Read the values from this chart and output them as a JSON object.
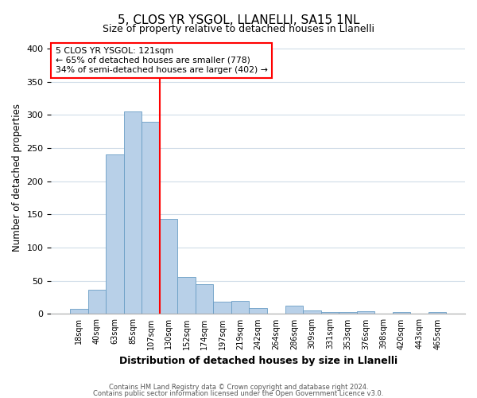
{
  "title": "5, CLOS YR YSGOL, LLANELLI, SA15 1NL",
  "subtitle": "Size of property relative to detached houses in Llanelli",
  "xlabel": "Distribution of detached houses by size in Llanelli",
  "ylabel": "Number of detached properties",
  "bar_labels": [
    "18sqm",
    "40sqm",
    "63sqm",
    "85sqm",
    "107sqm",
    "130sqm",
    "152sqm",
    "174sqm",
    "197sqm",
    "219sqm",
    "242sqm",
    "264sqm",
    "286sqm",
    "309sqm",
    "331sqm",
    "353sqm",
    "376sqm",
    "398sqm",
    "420sqm",
    "443sqm",
    "465sqm"
  ],
  "bar_values": [
    8,
    37,
    240,
    305,
    290,
    143,
    56,
    45,
    19,
    20,
    9,
    0,
    12,
    5,
    3,
    3,
    4,
    0,
    3,
    0,
    3
  ],
  "bar_color": "#b8d0e8",
  "bar_edge_color": "#6a9ec5",
  "vline_x_index": 4,
  "vline_color": "red",
  "annotation_text": "5 CLOS YR YSGOL: 121sqm\n← 65% of detached houses are smaller (778)\n34% of semi-detached houses are larger (402) →",
  "annotation_box_color": "white",
  "annotation_box_edge_color": "red",
  "ylim": [
    0,
    410
  ],
  "footer1": "Contains HM Land Registry data © Crown copyright and database right 2024.",
  "footer2": "Contains public sector information licensed under the Open Government Licence v3.0.",
  "fig_bg_color": "#ffffff",
  "plot_bg_color": "#ffffff",
  "grid_color": "#d0dce8"
}
